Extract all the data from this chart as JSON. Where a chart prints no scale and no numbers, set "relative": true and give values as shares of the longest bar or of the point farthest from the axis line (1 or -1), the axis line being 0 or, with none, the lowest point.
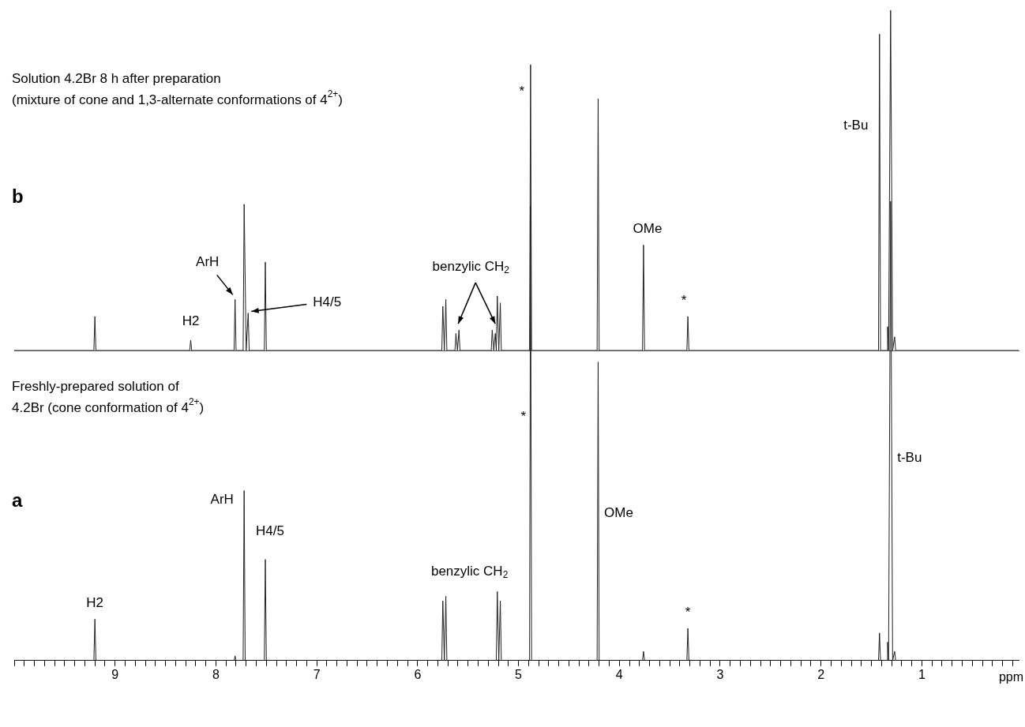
{
  "chart_data": [
    {
      "type": "line",
      "relative": true,
      "title": "Solution 4.2Br 8 h after preparation",
      "subtitle": "(mixture of cone and 1,3-alternate conformations of 4$^{2+}$)",
      "xlim": [
        10,
        0.04
      ],
      "tick_labels": false,
      "legend": false,
      "marker": "none",
      "series": [
        {
          "color": "#222222",
          "x": [
            10,
            9.21,
            9.2,
            9.19,
            8.26,
            8.25,
            8.24,
            7.82,
            7.81,
            7.8,
            7.73,
            7.72,
            7.7,
            7.68,
            7.67,
            7.52,
            7.51,
            7.5,
            5.76,
            5.75,
            5.735,
            5.72,
            5.71,
            5.63,
            5.62,
            5.605,
            5.59,
            5.58,
            5.27,
            5.26,
            5.245,
            5.23,
            5.22,
            5.21,
            5.195,
            5.18,
            5.17,
            4.89,
            4.88,
            4.87,
            4.22,
            4.21,
            4.2,
            3.77,
            3.76,
            3.75,
            3.33,
            3.32,
            3.31,
            1.43,
            1.42,
            1.41,
            1.345,
            1.34,
            1.33,
            1.31,
            1.29,
            1.27,
            1.26,
            0.04
          ],
          "values": [
            0,
            0,
            0.1,
            0,
            0,
            0.03,
            0,
            0,
            0.15,
            0,
            0,
            0.43,
            0,
            0.11,
            0,
            0,
            0.26,
            0,
            0,
            0.13,
            0,
            0.15,
            0,
            0,
            0.05,
            0,
            0.06,
            0,
            0,
            0.06,
            0,
            0.05,
            0,
            0.16,
            0,
            0.14,
            0,
            0,
            0.84,
            0,
            0,
            0.74,
            0,
            0,
            0.31,
            0,
            0,
            0.1,
            0,
            0,
            0.93,
            0,
            0,
            0.07,
            0,
            1,
            0,
            0.04,
            0,
            0
          ]
        }
      ],
      "annotations": [
        {
          "text": "H2",
          "x": 8.25,
          "y": 0.03
        },
        {
          "text": "ArH",
          "x": 7.81,
          "y": 0.15
        },
        {
          "text": "H4/5",
          "x": 7.68,
          "y": 0.11
        },
        {
          "text": "benzylic CH$_{2}$",
          "x": 5.59,
          "y": 0.06
        },
        {
          "text": "*",
          "x": 4.88,
          "y": 0.76
        },
        {
          "text": "OMe",
          "x": 3.76,
          "y": 0.31
        },
        {
          "text": "*",
          "x": 3.32,
          "y": 0.1
        },
        {
          "text": "t-Bu",
          "x": 1.42,
          "y": 0.66
        },
        "b"
      ]
    },
    {
      "type": "line",
      "relative": true,
      "title": "Freshly-prepared solution of",
      "subtitle": "4.2Br (cone conformation of 4$^{2+}$)",
      "xlabel": "ppm",
      "xlim": [
        10,
        0.04
      ],
      "legend": false,
      "marker": "none",
      "xticks": [
        {
          "value": 10,
          "label": null
        },
        {
          "value": 9.9,
          "label": null
        },
        {
          "value": 9.8,
          "label": null
        },
        {
          "value": 9.7,
          "label": null
        },
        {
          "value": 9.6,
          "label": null
        },
        {
          "value": 9.5,
          "label": null
        },
        {
          "value": 9.4,
          "label": null
        },
        {
          "value": 9.3,
          "label": null
        },
        {
          "value": 9.2,
          "label": null
        },
        {
          "value": 9.1,
          "label": null
        },
        9,
        {
          "value": 8.9,
          "label": null
        },
        {
          "value": 8.8,
          "label": null
        },
        {
          "value": 8.7,
          "label": null
        },
        {
          "value": 8.6,
          "label": null
        },
        {
          "value": 8.5,
          "label": null
        },
        {
          "value": 8.4,
          "label": null
        },
        {
          "value": 8.3,
          "label": null
        },
        {
          "value": 8.2,
          "label": null
        },
        {
          "value": 8.1,
          "label": null
        },
        8,
        {
          "value": 7.9,
          "label": null
        },
        {
          "value": 7.8,
          "label": null
        },
        {
          "value": 7.7,
          "label": null
        },
        {
          "value": 7.6,
          "label": null
        },
        {
          "value": 7.5,
          "label": null
        },
        {
          "value": 7.4,
          "label": null
        },
        {
          "value": 7.3,
          "label": null
        },
        {
          "value": 7.2,
          "label": null
        },
        {
          "value": 7.1,
          "label": null
        },
        7,
        {
          "value": 6.9,
          "label": null
        },
        {
          "value": 6.8,
          "label": null
        },
        {
          "value": 6.7,
          "label": null
        },
        {
          "value": 6.6,
          "label": null
        },
        {
          "value": 6.5,
          "label": null
        },
        {
          "value": 6.4,
          "label": null
        },
        {
          "value": 6.3,
          "label": null
        },
        {
          "value": 6.2,
          "label": null
        },
        {
          "value": 6.1,
          "label": null
        },
        6,
        {
          "value": 5.9,
          "label": null
        },
        {
          "value": 5.8,
          "label": null
        },
        {
          "value": 5.7,
          "label": null
        },
        {
          "value": 5.6,
          "label": null
        },
        {
          "value": 5.5,
          "label": null
        },
        {
          "value": 5.4,
          "label": null
        },
        {
          "value": 5.3,
          "label": null
        },
        {
          "value": 5.2,
          "label": null
        },
        {
          "value": 5.1,
          "label": null
        },
        5,
        {
          "value": 4.9,
          "label": null
        },
        {
          "value": 4.8,
          "label": null
        },
        {
          "value": 4.7,
          "label": null
        },
        {
          "value": 4.6,
          "label": null
        },
        {
          "value": 4.5,
          "label": null
        },
        {
          "value": 4.4,
          "label": null
        },
        {
          "value": 4.3,
          "label": null
        },
        {
          "value": 4.2,
          "label": null
        },
        {
          "value": 4.1,
          "label": null
        },
        4,
        {
          "value": 3.9,
          "label": null
        },
        {
          "value": 3.8,
          "label": null
        },
        {
          "value": 3.7,
          "label": null
        },
        {
          "value": 3.6,
          "label": null
        },
        {
          "value": 3.5,
          "label": null
        },
        {
          "value": 3.4,
          "label": null
        },
        {
          "value": 3.3,
          "label": null
        },
        {
          "value": 3.2,
          "label": null
        },
        {
          "value": 3.1,
          "label": null
        },
        3,
        {
          "value": 2.9,
          "label": null
        },
        {
          "value": 2.8,
          "label": null
        },
        {
          "value": 2.7,
          "label": null
        },
        {
          "value": 2.6,
          "label": null
        },
        {
          "value": 2.5,
          "label": null
        },
        {
          "value": 2.4,
          "label": null
        },
        {
          "value": 2.3,
          "label": null
        },
        {
          "value": 2.2,
          "label": null
        },
        {
          "value": 2.1,
          "label": null
        },
        2,
        {
          "value": 1.9,
          "label": null
        },
        {
          "value": 1.8,
          "label": null
        },
        {
          "value": 1.7,
          "label": null
        },
        {
          "value": 1.6,
          "label": null
        },
        {
          "value": 1.5,
          "label": null
        },
        {
          "value": 1.4,
          "label": null
        },
        {
          "value": 1.3,
          "label": null
        },
        {
          "value": 1.2,
          "label": null
        },
        {
          "value": 1.1,
          "label": null
        },
        1,
        {
          "value": 0.9,
          "label": null
        },
        {
          "value": 0.8,
          "label": null
        },
        {
          "value": 0.7,
          "label": null
        },
        {
          "value": 0.6,
          "label": null
        },
        {
          "value": 0.5,
          "label": null
        },
        {
          "value": 0.4,
          "label": null
        },
        {
          "value": 0.3,
          "label": null
        },
        {
          "value": 0.2,
          "label": null
        },
        {
          "value": 0.1,
          "label": null
        }
      ],
      "series": [
        {
          "color": "#222222",
          "x": [
            10,
            9.21,
            9.2,
            9.19,
            7.82,
            7.81,
            7.8,
            7.73,
            7.72,
            7.71,
            7.52,
            7.51,
            7.5,
            5.76,
            5.75,
            5.735,
            5.72,
            5.71,
            5.22,
            5.21,
            5.195,
            5.18,
            5.17,
            4.89,
            4.88,
            4.87,
            4.22,
            4.21,
            4.2,
            3.77,
            3.76,
            3.75,
            3.33,
            3.32,
            3.31,
            1.43,
            1.42,
            1.41,
            1.345,
            1.34,
            1.33,
            1.31,
            1.29,
            1.27,
            1.26,
            0.04
          ],
          "values": [
            0,
            0,
            0.09,
            0,
            0,
            0.01,
            0,
            0,
            0.37,
            0,
            0,
            0.22,
            0,
            0,
            0.13,
            0,
            0.14,
            0,
            0,
            0.15,
            0,
            0.13,
            0,
            0,
            0.99,
            0,
            0,
            0.65,
            0,
            0,
            0.02,
            0,
            0,
            0.07,
            0,
            0,
            0.06,
            0,
            0,
            0.04,
            0,
            1,
            0,
            0.02,
            0,
            0
          ]
        }
      ],
      "annotations": [
        {
          "text": "H2",
          "x": 9.2,
          "y": 0.09
        },
        {
          "text": "ArH",
          "x": 7.72,
          "y": 0.37
        },
        {
          "text": "H4/5",
          "x": 7.51,
          "y": 0.22
        },
        {
          "text": "benzylic CH$_{2}$",
          "x": 5.72,
          "y": 0.14
        },
        {
          "text": "*",
          "x": 4.88,
          "y": 0.53
        },
        {
          "text": "OMe",
          "x": 4.21,
          "y": 0.32
        },
        {
          "text": "*",
          "x": 3.32,
          "y": 0.07
        },
        {
          "text": "t-Bu",
          "x": 1.31,
          "y": 0.44
        },
        "a"
      ]
    }
  ]
}
